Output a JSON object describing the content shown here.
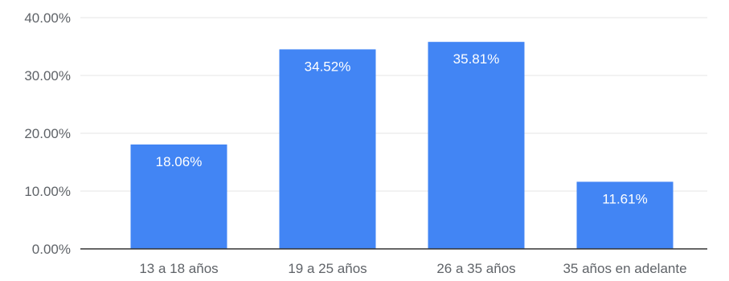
{
  "chart_data": {
    "type": "bar",
    "categories": [
      "13 a 18 años",
      "19 a 25 años",
      "26 a 35 años",
      "35 años en adelante"
    ],
    "values": [
      18.06,
      34.52,
      35.81,
      11.61
    ],
    "data_labels": [
      "18.06%",
      "34.52%",
      "35.81%",
      "11.61%"
    ],
    "y_ticks": [
      0,
      10,
      20,
      30,
      40
    ],
    "y_tick_labels": [
      "0.00%",
      "10.00%",
      "20.00%",
      "30.00%",
      "40.00%"
    ],
    "ylim": [
      0,
      40
    ],
    "grid": true,
    "legend": "none",
    "bar_color": "#4285f4",
    "grid_color": "#e6e6e6",
    "axis_color": "#333333"
  }
}
